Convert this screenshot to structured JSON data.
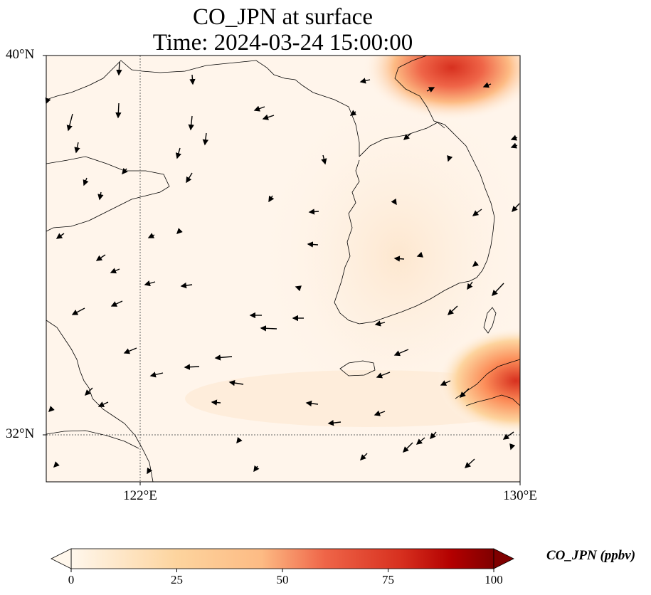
{
  "title": {
    "line1": "CO_JPN at surface",
    "line2": "Time: 2024-03-24 15:00:00"
  },
  "axes": {
    "y_ticks": [
      "40°N",
      "32°N"
    ],
    "x_ticks": [
      "122°E",
      "130°E"
    ],
    "gridlines": "dotted at 122°E and 32°N"
  },
  "colorbar": {
    "label": "CO_JPN (ppbv)",
    "ticks": [
      "0",
      "25",
      "50",
      "75",
      "100"
    ],
    "colormap": "OrRd",
    "extend": "both"
  },
  "map": {
    "extent_lon": [
      120,
      130
    ],
    "extent_lat": [
      31,
      40
    ],
    "features": [
      "coastlines",
      "wind vectors",
      "CO concentration field"
    ],
    "hotspots": [
      {
        "region": "northeast (North Korea / China border)",
        "level": "high"
      },
      {
        "region": "southeast (Kyushu, Japan)",
        "level": "high"
      },
      {
        "region": "Korean peninsula",
        "level": "low"
      }
    ],
    "colors": {
      "background": "#fff5eb",
      "low": "#fde0c4",
      "mid": "#fc8d59",
      "high": "#d7301f",
      "max": "#7f0000"
    }
  }
}
